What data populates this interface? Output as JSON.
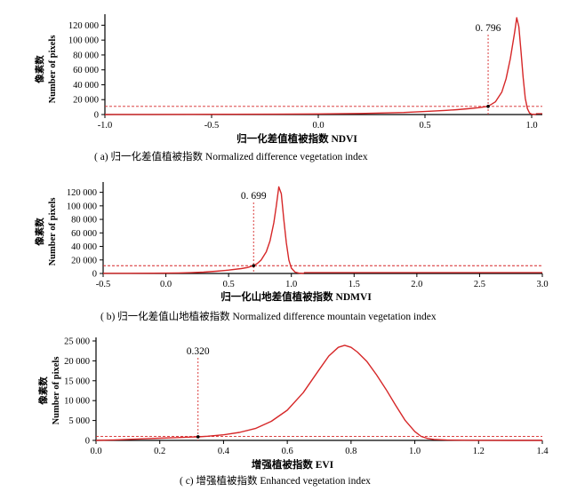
{
  "chart_data": [
    {
      "type": "line",
      "title": "",
      "caption": "( a) 归一化差值植被指数 Normalized difference vegetation index",
      "xlabel": "归一化差值植被指数 NDVI",
      "ylabel_cn": "像素数",
      "ylabel_en": "Number of pixels",
      "xlim": [
        -1.0,
        1.05
      ],
      "ylim": [
        0,
        130000
      ],
      "xticks": [
        -1.0,
        -0.5,
        0.0,
        0.5,
        1.0
      ],
      "xtick_labels": [
        "-1.0",
        "-0.5",
        "0.0",
        "0.5",
        "1.0"
      ],
      "yticks": [
        0,
        20000,
        40000,
        60000,
        80000,
        100000,
        120000
      ],
      "ytick_labels": [
        "0",
        "20 000",
        "40 000",
        "60 000",
        "80 000",
        "100 000",
        "120 000"
      ],
      "threshold": {
        "x": 0.796,
        "label": "0. 796",
        "y": 11000
      },
      "hline_y": 11000,
      "grid": false,
      "series": [
        {
          "color": "#d62728",
          "x": [
            -1.0,
            -0.8,
            -0.6,
            -0.4,
            -0.2,
            0.0,
            0.2,
            0.4,
            0.5,
            0.6,
            0.65,
            0.7,
            0.75,
            0.796,
            0.83,
            0.86,
            0.88,
            0.9,
            0.92,
            0.93,
            0.94,
            0.95,
            0.96,
            0.97,
            0.98,
            0.99,
            1.0,
            1.02
          ],
          "y": [
            0,
            100,
            200,
            300,
            500,
            800,
            1400,
            2800,
            4000,
            5600,
            6600,
            7800,
            9200,
            11000,
            17000,
            30000,
            48000,
            75000,
            110000,
            130000,
            118000,
            85000,
            50000,
            22000,
            8000,
            2000,
            500,
            0
          ]
        }
      ]
    },
    {
      "type": "line",
      "title": "",
      "caption": "( b) 归一化差值山地植被指数 Normalized difference mountain vegetation index",
      "xlabel": "归一化山地差值植被指数 NDMVI",
      "ylabel_cn": "像素数",
      "ylabel_en": "Number of pixels",
      "xlim": [
        -0.5,
        3.0
      ],
      "ylim": [
        0,
        130000
      ],
      "xticks": [
        -0.5,
        0.0,
        0.5,
        1.0,
        1.5,
        2.0,
        2.5,
        3.0
      ],
      "xtick_labels": [
        "-0.5",
        "0.0",
        "0.5",
        "1.0",
        "1.5",
        "2.0",
        "2.5",
        "3.0"
      ],
      "yticks": [
        0,
        20000,
        40000,
        60000,
        80000,
        100000,
        120000
      ],
      "ytick_labels": [
        "0",
        "20 000",
        "40 000",
        "60 000",
        "80 000",
        "100 000",
        "120 000"
      ],
      "threshold": {
        "x": 0.699,
        "label": "0. 699",
        "y": 11500
      },
      "hline_y": 11500,
      "grid": false,
      "series": [
        {
          "color": "#d62728",
          "x": [
            -0.5,
            -0.3,
            -0.1,
            0.0,
            0.1,
            0.2,
            0.3,
            0.4,
            0.5,
            0.6,
            0.65,
            0.699,
            0.73,
            0.76,
            0.8,
            0.83,
            0.86,
            0.88,
            0.9,
            0.92,
            0.94,
            0.96,
            0.98,
            1.0,
            1.03,
            1.06,
            1.1
          ],
          "y": [
            200,
            300,
            400,
            500,
            800,
            1200,
            2000,
            3300,
            5000,
            7200,
            8800,
            11500,
            15000,
            20000,
            32000,
            48000,
            75000,
            100000,
            128000,
            118000,
            80000,
            45000,
            20000,
            8000,
            2000,
            500,
            0
          ]
        }
      ]
    },
    {
      "type": "line",
      "title": "",
      "caption": "( c) 增强植被指数 Enhanced vegetation index",
      "xlabel": "增强植被指数 EVI",
      "ylabel_cn": "像素数",
      "ylabel_en": "Number of pixels",
      "xlim": [
        0.0,
        1.4
      ],
      "ylim": [
        0,
        25000
      ],
      "xticks": [
        0.0,
        0.2,
        0.4,
        0.6,
        0.8,
        1.0,
        1.2,
        1.4
      ],
      "xtick_labels": [
        "0.0",
        "0.2",
        "0.4",
        "0.6",
        "0.8",
        "1.0",
        "1.2",
        "1.4"
      ],
      "yticks": [
        0,
        5000,
        10000,
        15000,
        20000,
        25000
      ],
      "ytick_labels": [
        "0",
        "5 000",
        "10 000",
        "15 000",
        "20 000",
        "25 000"
      ],
      "threshold": {
        "x": 0.32,
        "label": "0.320",
        "y": 900
      },
      "hline_y": 1000,
      "grid": false,
      "series": [
        {
          "color": "#d62728",
          "x": [
            0.0,
            0.05,
            0.1,
            0.15,
            0.2,
            0.25,
            0.3,
            0.32,
            0.35,
            0.4,
            0.45,
            0.5,
            0.55,
            0.6,
            0.65,
            0.7,
            0.73,
            0.76,
            0.78,
            0.8,
            0.82,
            0.85,
            0.88,
            0.91,
            0.94,
            0.97,
            1.0,
            1.02,
            1.04,
            1.06,
            1.1,
            1.15,
            1.2,
            1.3,
            1.4
          ],
          "y": [
            0,
            100,
            250,
            400,
            550,
            700,
            850,
            900,
            1050,
            1400,
            2000,
            3000,
            4800,
            7600,
            12000,
            17800,
            21200,
            23400,
            23900,
            23400,
            22200,
            19800,
            16500,
            12800,
            8800,
            5000,
            2200,
            1000,
            500,
            250,
            100,
            50,
            20,
            0,
            0
          ]
        }
      ]
    }
  ]
}
